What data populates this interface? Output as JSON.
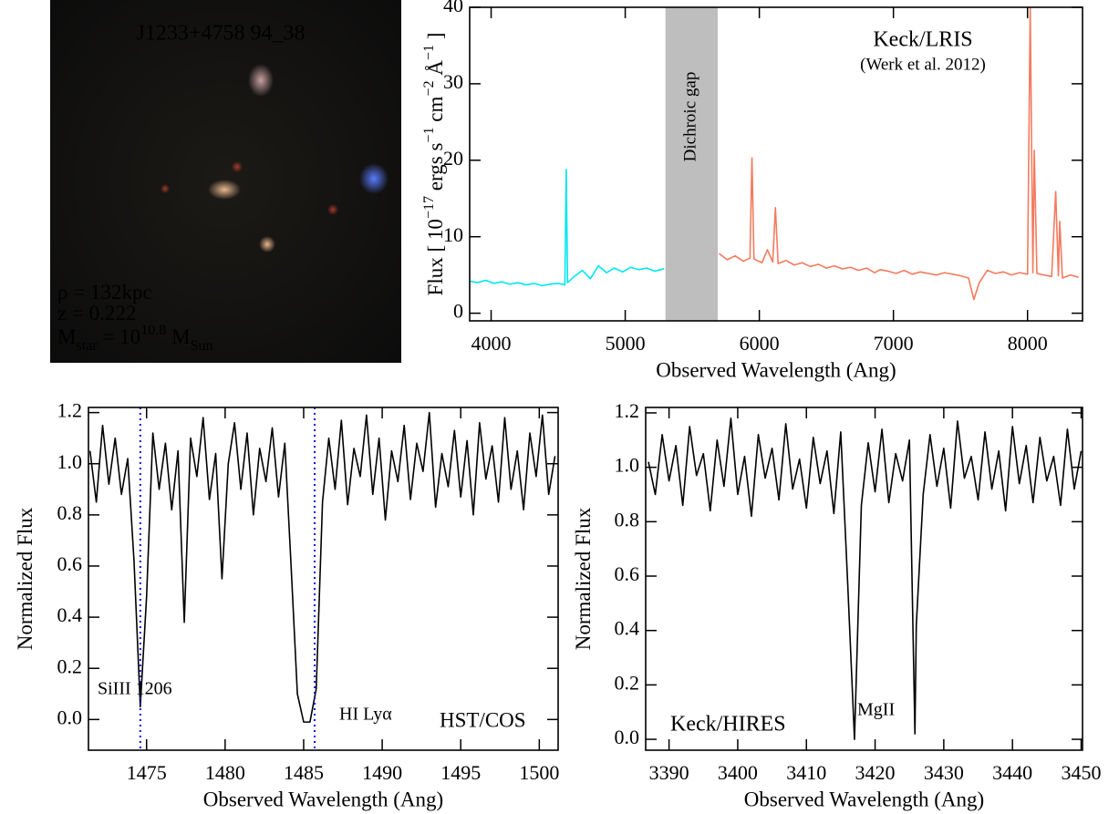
{
  "image": {
    "title": "J1233+4758  94_38",
    "lines": [
      [
        {
          "text": "ρ = 132kpc"
        }
      ],
      [
        {
          "text": "z = 0.222"
        }
      ],
      [
        {
          "text": "M"
        },
        {
          "text": "star",
          "shift": "sub"
        },
        {
          "text": " = 10"
        },
        {
          "text": "10.8",
          "shift": "super"
        },
        {
          "text": " M"
        },
        {
          "text": "Sun",
          "shift": "sub"
        }
      ]
    ],
    "text_color": "#e6e020"
  },
  "chart_data": [
    {
      "type": "line",
      "xlabel": "Observed Wavelength (Ang)",
      "ylabel": [
        {
          "text": "Flux [ 10"
        },
        {
          "text": "−17",
          "shift": "super"
        },
        {
          "text": " ergs s"
        },
        {
          "text": "−1",
          "shift": "super"
        },
        {
          "text": " cm"
        },
        {
          "text": "−2",
          "shift": "super"
        },
        {
          "text": " Å"
        },
        {
          "text": "−1",
          "shift": "super"
        },
        {
          "text": " ]"
        }
      ],
      "xlim": [
        3840,
        8410
      ],
      "ylim": [
        -1,
        40
      ],
      "xticks": [
        4000,
        5000,
        6000,
        7000,
        8000
      ],
      "yticks": [
        0,
        10,
        20,
        30,
        40
      ],
      "span": {
        "range": [
          5300,
          5690
        ],
        "label": "Dichroic gap",
        "color": "#bebebe"
      },
      "annotations": [
        {
          "text": "Keck/LRIS",
          "color": "#000000"
        },
        {
          "text": "(Werk et al. 2012)",
          "color": "#000000"
        }
      ],
      "series": [
        {
          "color": "#00e6f0",
          "x": [
            3840,
            3900,
            3960,
            4020,
            4080,
            4140,
            4200,
            4260,
            4320,
            4380,
            4440,
            4500,
            4550,
            4560,
            4570,
            4620,
            4680,
            4740,
            4800,
            4860,
            4920,
            4980,
            5040,
            5100,
            5160,
            5220,
            5290
          ],
          "values": [
            4.2,
            4.0,
            4.3,
            3.9,
            4.1,
            3.8,
            4.0,
            3.7,
            3.9,
            3.6,
            3.8,
            3.9,
            3.7,
            18.8,
            4.0,
            4.8,
            5.6,
            4.5,
            6.2,
            5.3,
            5.9,
            5.4,
            6.0,
            5.7,
            5.9,
            5.5,
            5.8
          ]
        },
        {
          "color": "#f47a5e",
          "x": [
            5700,
            5760,
            5820,
            5880,
            5930,
            5945,
            5960,
            6020,
            6060,
            6100,
            6120,
            6140,
            6200,
            6260,
            6320,
            6380,
            6440,
            6500,
            6560,
            6620,
            6680,
            6740,
            6800,
            6860,
            6900,
            6960,
            7020,
            7080,
            7140,
            7200,
            7260,
            7320,
            7380,
            7440,
            7500,
            7560,
            7600,
            7640,
            7700,
            7760,
            7820,
            7880,
            7940,
            8000,
            8020,
            8040,
            8050,
            8070,
            8120,
            8180,
            8210,
            8230,
            8240,
            8260,
            8320,
            8380
          ],
          "values": [
            7.8,
            7.0,
            7.5,
            6.8,
            7.2,
            20.3,
            7.1,
            6.6,
            8.3,
            6.7,
            13.8,
            6.5,
            6.9,
            6.3,
            6.6,
            6.1,
            6.4,
            5.9,
            6.2,
            5.8,
            6.0,
            5.6,
            5.9,
            5.3,
            5.7,
            5.5,
            5.2,
            5.6,
            5.1,
            5.4,
            5.2,
            5.0,
            5.3,
            5.1,
            4.9,
            4.6,
            1.8,
            4.0,
            5.6,
            5.2,
            5.4,
            5.0,
            5.3,
            5.1,
            40.0,
            5.3,
            21.3,
            5.2,
            5.0,
            4.8,
            15.9,
            4.9,
            12.0,
            4.6,
            5.0,
            4.7
          ]
        }
      ]
    },
    {
      "type": "line",
      "xlabel": "Observed Wavelength (Ang)",
      "ylabel": [
        {
          "text": "Normalized Flux"
        }
      ],
      "xlim": [
        1471.3,
        1501.2
      ],
      "ylim": [
        -0.12,
        1.22
      ],
      "xticks": [
        1475,
        1480,
        1485,
        1490,
        1495,
        1500
      ],
      "yticks": [
        {
          "value": 0,
          "label": "0.0"
        },
        0.2,
        0.4,
        0.6,
        0.8,
        {
          "value": 1,
          "label": "1.0"
        },
        1.2
      ],
      "vlines": {
        "values": [
          1474.6,
          1485.7
        ],
        "color": "#1010e0"
      },
      "annotations": [
        {
          "text": "SiIII 1206",
          "color": "#1010e0"
        },
        {
          "text": "HI Lyα",
          "color": "#1010e0"
        },
        {
          "text": "HST/COS",
          "color": "#000000"
        }
      ],
      "series": [
        {
          "color": "#000000",
          "x": [
            1471.4,
            1471.8,
            1472.2,
            1472.6,
            1473.0,
            1473.4,
            1473.8,
            1474.2,
            1474.6,
            1475.0,
            1475.4,
            1475.8,
            1476.2,
            1476.6,
            1477.0,
            1477.4,
            1477.8,
            1478.2,
            1478.6,
            1479.0,
            1479.4,
            1479.8,
            1480.2,
            1480.6,
            1481.0,
            1481.4,
            1481.8,
            1482.2,
            1482.6,
            1483.0,
            1483.4,
            1483.8,
            1484.2,
            1484.6,
            1485.0,
            1485.4,
            1485.8,
            1486.2,
            1486.6,
            1487.0,
            1487.4,
            1487.8,
            1488.2,
            1488.6,
            1489.0,
            1489.4,
            1489.8,
            1490.2,
            1490.6,
            1491.0,
            1491.4,
            1491.8,
            1492.2,
            1492.6,
            1493.0,
            1493.4,
            1493.8,
            1494.2,
            1494.6,
            1495.0,
            1495.4,
            1495.8,
            1496.2,
            1496.6,
            1497.0,
            1497.4,
            1497.8,
            1498.2,
            1498.6,
            1499.0,
            1499.4,
            1499.8,
            1500.2,
            1500.6,
            1501.0
          ],
          "values": [
            1.05,
            0.85,
            1.15,
            0.92,
            1.1,
            0.88,
            1.02,
            0.62,
            0.05,
            0.48,
            1.12,
            0.9,
            1.08,
            0.82,
            1.05,
            0.38,
            1.1,
            0.95,
            1.18,
            0.86,
            1.04,
            0.55,
            1.0,
            1.16,
            0.9,
            1.12,
            0.8,
            1.06,
            0.93,
            1.14,
            0.87,
            1.08,
            0.6,
            0.1,
            -0.01,
            -0.01,
            0.12,
            0.85,
            1.1,
            0.9,
            1.17,
            0.84,
            1.06,
            0.95,
            1.19,
            0.88,
            1.1,
            0.78,
            1.05,
            0.93,
            1.15,
            0.86,
            1.08,
            0.97,
            1.2,
            0.83,
            1.04,
            0.91,
            1.13,
            0.87,
            1.09,
            0.8,
            1.16,
            0.94,
            1.07,
            0.85,
            1.18,
            0.9,
            1.05,
            0.82,
            1.12,
            0.95,
            1.19,
            0.88,
            1.03
          ]
        }
      ]
    },
    {
      "type": "line",
      "xlabel": "Observed Wavelength (Ang)",
      "ylabel": [
        {
          "text": "Normalized Flux"
        }
      ],
      "xlim": [
        3386.6,
        3450.2
      ],
      "ylim": [
        -0.04,
        1.22
      ],
      "xticks": [
        3390,
        3400,
        3410,
        3420,
        3430,
        3440,
        3450
      ],
      "yticks": [
        {
          "value": 0,
          "label": "0.0"
        },
        0.2,
        0.4,
        0.6,
        0.8,
        {
          "value": 1,
          "label": "1.0"
        },
        1.2
      ],
      "annotations": [
        {
          "text": "Keck/HIRES",
          "color": "#000000"
        },
        {
          "text": "MgII",
          "color": "#1010e0"
        }
      ],
      "series": [
        {
          "color": "#000000",
          "x": [
            3387,
            3388,
            3389,
            3390,
            3391,
            3392,
            3393,
            3394,
            3395,
            3396,
            3397,
            3398,
            3399,
            3400,
            3401,
            3402,
            3403,
            3404,
            3405,
            3406,
            3407,
            3408,
            3409,
            3410,
            3411,
            3412,
            3413,
            3414,
            3415,
            3416,
            3417,
            3418,
            3419,
            3420,
            3421,
            3422,
            3423,
            3424,
            3425,
            3425.8,
            3426,
            3427,
            3428,
            3429,
            3430,
            3431,
            3432,
            3433,
            3434,
            3435,
            3436,
            3437,
            3438,
            3439,
            3440,
            3441,
            3442,
            3443,
            3444,
            3445,
            3446,
            3447,
            3448,
            3449,
            3450
          ],
          "values": [
            1.02,
            0.9,
            1.12,
            0.95,
            1.08,
            0.86,
            1.15,
            0.97,
            1.05,
            0.84,
            1.1,
            0.93,
            1.18,
            0.9,
            1.04,
            0.82,
            1.12,
            0.96,
            1.07,
            0.88,
            1.16,
            0.92,
            1.03,
            0.85,
            1.11,
            0.94,
            1.06,
            0.83,
            1.13,
            0.58,
            0.0,
            0.86,
            1.09,
            0.91,
            1.14,
            0.87,
            1.05,
            0.95,
            1.1,
            0.02,
            0.42,
            0.9,
            1.12,
            0.93,
            1.07,
            0.85,
            1.17,
            0.96,
            1.04,
            0.88,
            1.13,
            0.92,
            1.06,
            0.84,
            1.15,
            0.94,
            1.08,
            0.87,
            1.11,
            0.95,
            1.04,
            0.86,
            1.14,
            0.92,
            1.06
          ]
        }
      ]
    }
  ]
}
